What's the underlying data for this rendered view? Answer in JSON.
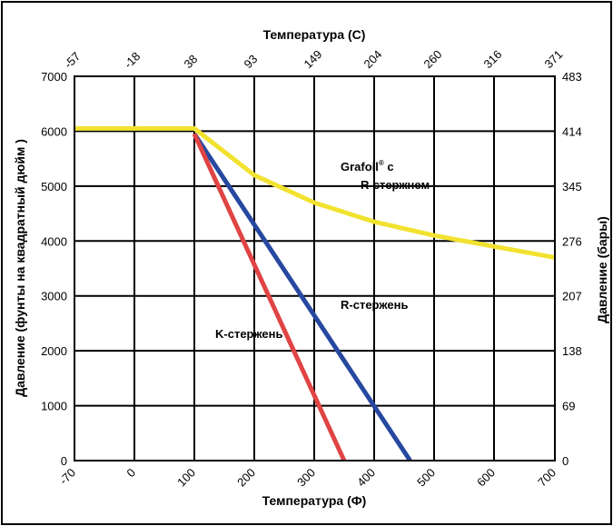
{
  "chart_data": {
    "type": "line",
    "top_axis_title": "Температура (C)",
    "bottom_axis_title": "Температура (Ф)",
    "left_axis_title": "Давление (фунты на квадратный дюйм )",
    "right_axis_title": "Давление (бары)",
    "x_ticks_bottom": [
      "-70",
      "0",
      "100",
      "200",
      "300",
      "400",
      "500",
      "600",
      "700"
    ],
    "x_ticks_top": [
      "-57",
      "-18",
      "38",
      "93",
      "149",
      "204",
      "260",
      "316",
      "371"
    ],
    "y_ticks_left": [
      "0",
      "1000",
      "2000",
      "3000",
      "4000",
      "5000",
      "6000",
      "7000"
    ],
    "y_ticks_right": [
      "0",
      "69",
      "138",
      "207",
      "276",
      "345",
      "414",
      "483"
    ],
    "xlim": [
      -100,
      700
    ],
    "ylim": [
      0,
      7000
    ],
    "grid": true,
    "series": [
      {
        "name": "Grafoil® с R-стержнем",
        "color": "#f2e230",
        "x": [
          -100,
          0,
          100,
          200,
          300,
          400,
          500,
          600,
          700
        ],
        "y": [
          6050,
          6050,
          6050,
          5200,
          4700,
          4350,
          4100,
          3900,
          3700
        ]
      },
      {
        "name": "R-стержень",
        "color": "#2748a0",
        "x": [
          100,
          460
        ],
        "y": [
          5950,
          0
        ]
      },
      {
        "name": "K-стержень",
        "color": "#e04444",
        "x": [
          100,
          350
        ],
        "y": [
          5950,
          0
        ]
      }
    ],
    "annotations": {
      "grafoil_line1": "Grafoil",
      "grafoil_sup": "®",
      "grafoil_line1_end": " с",
      "grafoil_line2": "R-стержнем",
      "r_rod": "R-стержень",
      "k_rod": "K-стержень"
    }
  }
}
